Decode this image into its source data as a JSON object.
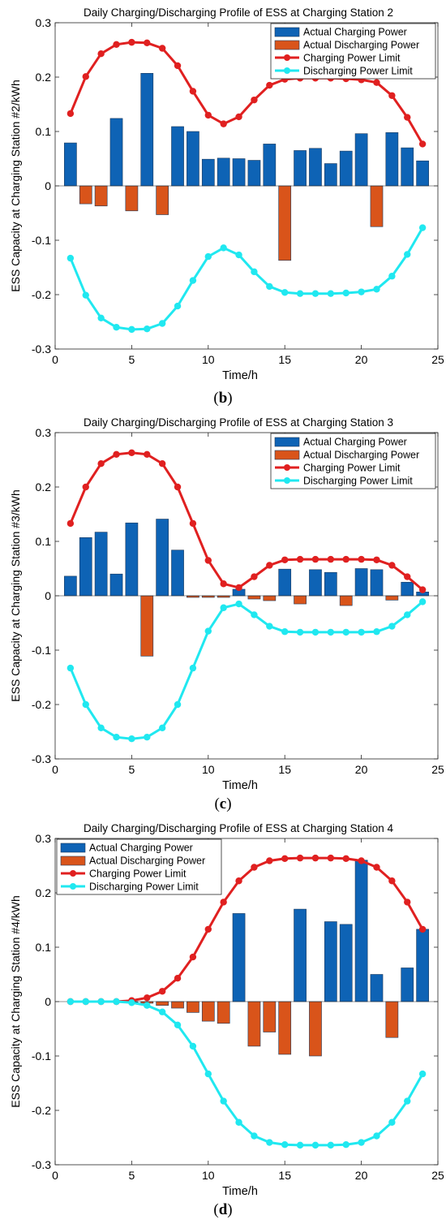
{
  "chart_data": [
    {
      "type": "bar",
      "title": "Daily Charging/Discharging Profile of ESS at Charging Station 2",
      "xlabel": "Time/h",
      "ylabel": "ESS Capacity at Charging Station #2/kWh",
      "xlim": [
        0,
        25
      ],
      "ylim": [
        -0.3,
        0.3
      ],
      "xticks": [
        "0",
        "5",
        "10",
        "15",
        "20",
        "25"
      ],
      "yticks": [
        "-0.3",
        "-0.2",
        "-0.1",
        "0",
        "0.1",
        "0.2",
        "0.3"
      ],
      "legend_position": "top-right",
      "panel_label": "b",
      "x": [
        1,
        2,
        3,
        4,
        5,
        6,
        7,
        8,
        9,
        10,
        11,
        12,
        13,
        14,
        15,
        16,
        17,
        18,
        19,
        20,
        21,
        22,
        23,
        24
      ],
      "series": [
        {
          "name": "Actual Charging Power",
          "kind": "bar",
          "color": "#0e63b5",
          "values": [
            0.079,
            0,
            0,
            0.124,
            0,
            0.207,
            0,
            0.109,
            0.1,
            0.049,
            0.051,
            0.05,
            0.047,
            0.077,
            0,
            0.065,
            0.069,
            0.041,
            0.064,
            0.096,
            0,
            0.098,
            0.07,
            0.046
          ]
        },
        {
          "name": "Actual Discharging Power",
          "kind": "bar",
          "color": "#d9541a",
          "values": [
            0,
            -0.033,
            -0.037,
            0,
            -0.046,
            0,
            -0.053,
            0,
            0,
            0,
            0,
            0,
            0,
            0,
            -0.137,
            0,
            0,
            0,
            0,
            0,
            -0.075,
            0,
            0,
            0
          ]
        },
        {
          "name": "Charging Power Limit",
          "kind": "line",
          "color": "#e02020",
          "values": [
            0.133,
            0.201,
            0.243,
            0.26,
            0.264,
            0.263,
            0.253,
            0.221,
            0.174,
            0.13,
            0.114,
            0.127,
            0.158,
            0.185,
            0.196,
            0.198,
            0.198,
            0.198,
            0.197,
            0.195,
            0.19,
            0.166,
            0.126,
            0.077
          ]
        },
        {
          "name": "Discharging Power Limit",
          "kind": "line",
          "color": "#20e8f0",
          "values": [
            -0.133,
            -0.201,
            -0.243,
            -0.26,
            -0.264,
            -0.263,
            -0.253,
            -0.221,
            -0.174,
            -0.13,
            -0.114,
            -0.127,
            -0.158,
            -0.185,
            -0.196,
            -0.198,
            -0.198,
            -0.198,
            -0.197,
            -0.195,
            -0.19,
            -0.166,
            -0.126,
            -0.077
          ]
        }
      ]
    },
    {
      "type": "bar",
      "title": "Daily Charging/Discharging Profile of ESS at Charging Station 3",
      "xlabel": "Time/h",
      "ylabel": "ESS Capacity at Charging Station #3/kWh",
      "xlim": [
        0,
        25
      ],
      "ylim": [
        -0.3,
        0.3
      ],
      "xticks": [
        "0",
        "5",
        "10",
        "15",
        "20",
        "25"
      ],
      "yticks": [
        "-0.3",
        "-0.2",
        "-0.1",
        "0",
        "0.1",
        "0.2",
        "0.3"
      ],
      "legend_position": "top-right",
      "panel_label": "c",
      "x": [
        1,
        2,
        3,
        4,
        5,
        6,
        7,
        8,
        9,
        10,
        11,
        12,
        13,
        14,
        15,
        16,
        17,
        18,
        19,
        20,
        21,
        22,
        23,
        24
      ],
      "series": [
        {
          "name": "Actual Charging Power",
          "kind": "bar",
          "color": "#0e63b5",
          "values": [
            0.036,
            0.107,
            0.117,
            0.04,
            0.134,
            0,
            0.141,
            0.084,
            0,
            0,
            0,
            0.012,
            0,
            0,
            0.049,
            0,
            0.048,
            0.043,
            0,
            0.05,
            0.048,
            0,
            0.025,
            0.007
          ]
        },
        {
          "name": "Actual Discharging Power",
          "kind": "bar",
          "color": "#d9541a",
          "values": [
            0,
            0,
            0,
            0,
            0,
            -0.111,
            0,
            0,
            -0.003,
            -0.003,
            -0.003,
            0,
            -0.006,
            -0.009,
            0,
            -0.015,
            0,
            0,
            -0.018,
            0,
            0,
            -0.008,
            0,
            0
          ]
        },
        {
          "name": "Charging Power Limit",
          "kind": "line",
          "color": "#e02020",
          "values": [
            0.133,
            0.2,
            0.243,
            0.26,
            0.263,
            0.26,
            0.243,
            0.2,
            0.133,
            0.065,
            0.022,
            0.015,
            0.035,
            0.056,
            0.066,
            0.067,
            0.067,
            0.067,
            0.067,
            0.067,
            0.066,
            0.056,
            0.035,
            0.011
          ]
        },
        {
          "name": "Discharging Power Limit",
          "kind": "line",
          "color": "#20e8f0",
          "values": [
            -0.133,
            -0.2,
            -0.243,
            -0.26,
            -0.263,
            -0.26,
            -0.243,
            -0.2,
            -0.133,
            -0.065,
            -0.022,
            -0.015,
            -0.035,
            -0.056,
            -0.066,
            -0.067,
            -0.067,
            -0.067,
            -0.067,
            -0.067,
            -0.066,
            -0.056,
            -0.035,
            -0.011
          ]
        }
      ]
    },
    {
      "type": "bar",
      "title": "Daily Charging/Discharging Profile of ESS at Charging Station 4",
      "xlabel": "Time/h",
      "ylabel": "ESS Capacity at Charging Station #4/kWh",
      "xlim": [
        0,
        25
      ],
      "ylim": [
        -0.3,
        0.3
      ],
      "xticks": [
        "0",
        "5",
        "10",
        "15",
        "20",
        "25"
      ],
      "yticks": [
        "-0.3",
        "-0.2",
        "-0.1",
        "0",
        "0.1",
        "0.2",
        "0.3"
      ],
      "legend_position": "top-left",
      "panel_label": "d",
      "x": [
        1,
        2,
        3,
        4,
        5,
        6,
        7,
        8,
        9,
        10,
        11,
        12,
        13,
        14,
        15,
        16,
        17,
        18,
        19,
        20,
        21,
        22,
        23,
        24
      ],
      "series": [
        {
          "name": "Actual Charging Power",
          "kind": "bar",
          "color": "#0e63b5",
          "values": [
            0,
            0,
            0,
            0,
            0,
            0,
            0,
            0,
            0,
            0,
            0,
            0.162,
            0,
            0,
            0,
            0.17,
            0,
            0.147,
            0.142,
            0.26,
            0.05,
            0,
            0.062,
            0.133
          ]
        },
        {
          "name": "Actual Discharging Power",
          "kind": "bar",
          "color": "#d9541a",
          "values": [
            0,
            0,
            0,
            0,
            -0.001,
            -0.003,
            -0.007,
            -0.012,
            -0.02,
            -0.036,
            -0.04,
            0,
            -0.082,
            -0.056,
            -0.097,
            0,
            -0.1,
            0,
            0,
            0,
            0,
            -0.066,
            0,
            0
          ]
        },
        {
          "name": "Charging Power Limit",
          "kind": "line",
          "color": "#e02020",
          "values": [
            0,
            0,
            0,
            0,
            0.002,
            0.007,
            0.019,
            0.043,
            0.082,
            0.133,
            0.183,
            0.222,
            0.247,
            0.259,
            0.263,
            0.264,
            0.264,
            0.264,
            0.263,
            0.259,
            0.247,
            0.222,
            0.183,
            0.133
          ]
        },
        {
          "name": "Discharging Power Limit",
          "kind": "line",
          "color": "#20e8f0",
          "values": [
            0,
            0,
            0,
            0,
            -0.002,
            -0.007,
            -0.019,
            -0.043,
            -0.082,
            -0.133,
            -0.183,
            -0.222,
            -0.247,
            -0.259,
            -0.263,
            -0.264,
            -0.264,
            -0.264,
            -0.263,
            -0.259,
            -0.247,
            -0.222,
            -0.183,
            -0.133
          ]
        }
      ]
    }
  ]
}
